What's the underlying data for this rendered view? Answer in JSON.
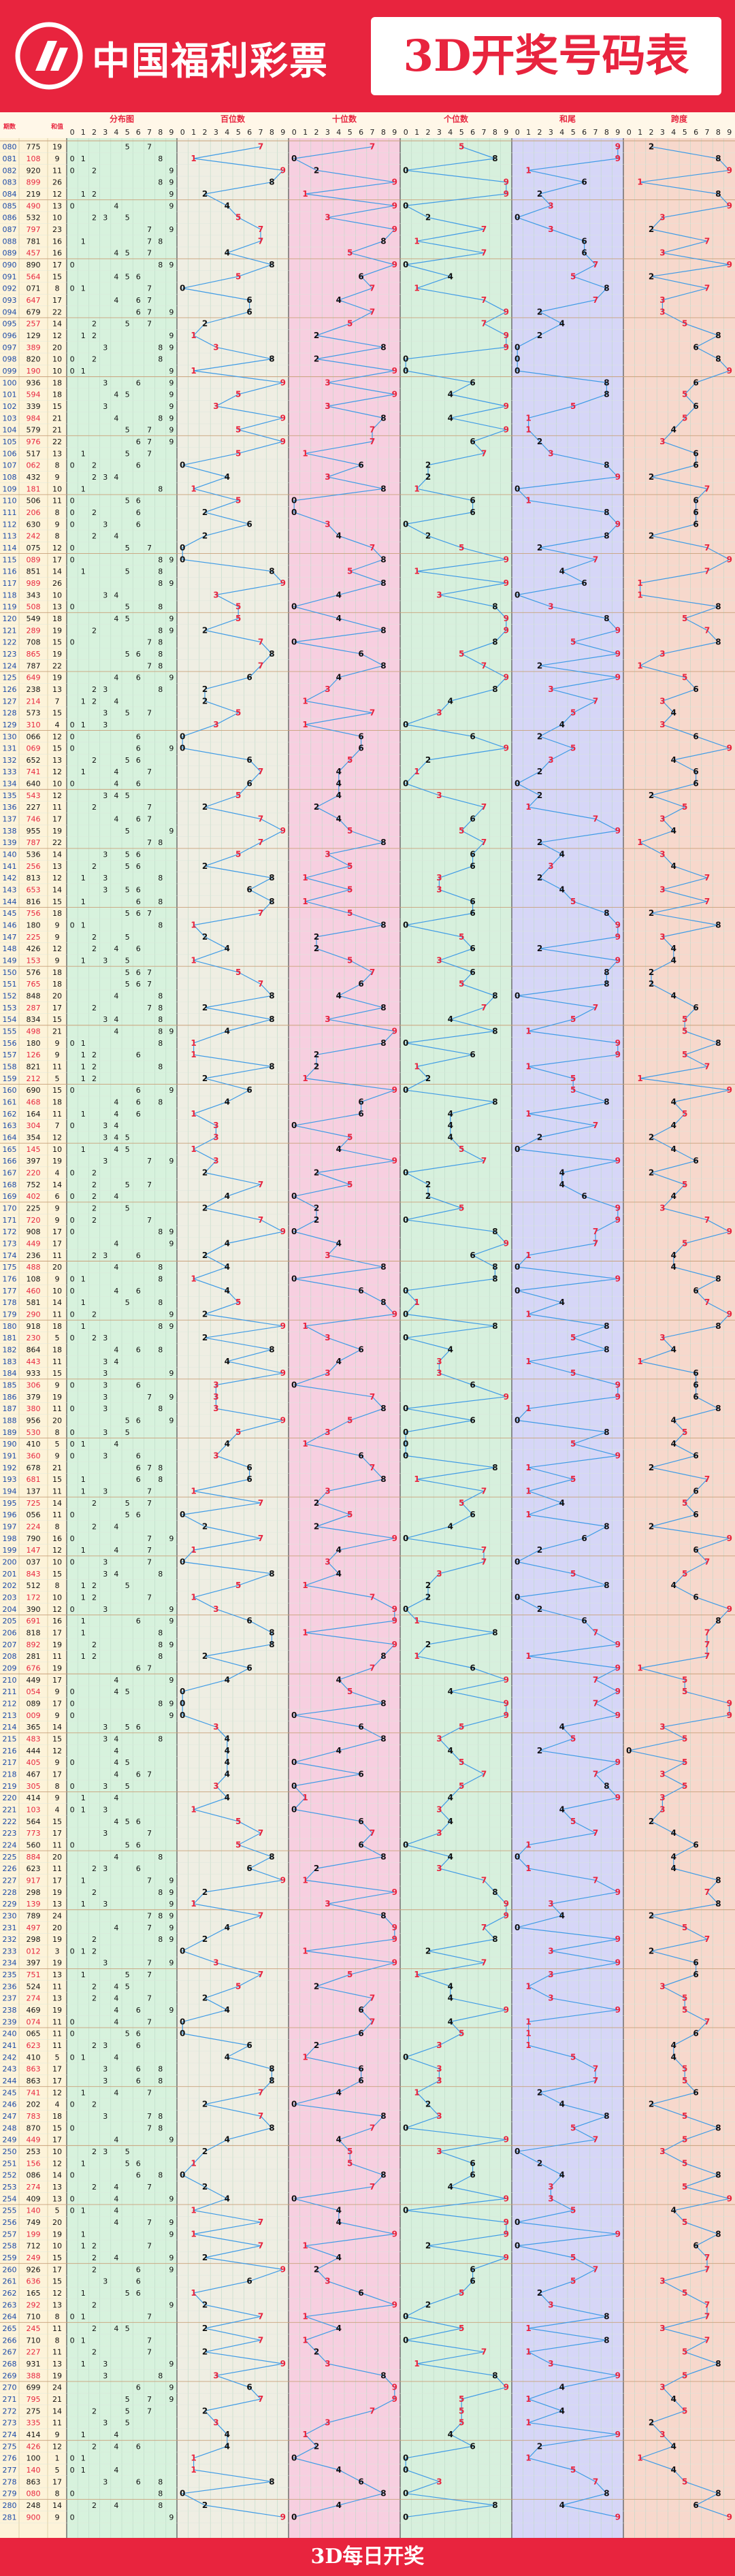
{
  "header": {
    "logo_text": "中国福利彩票",
    "title": "3D开奖号码表"
  },
  "footer": {
    "caption": "3D每日开奖"
  },
  "colors": {
    "brand_red": "#e8243e",
    "zone_distribution": "#d7f2dd",
    "zone_hundreds": "#efeee3",
    "zone_tens": "#f7cfe0",
    "zone_units": "#d7f0dd",
    "zone_sum_tail": "#d6d6f7",
    "zone_span": "#f7d8cc",
    "trend_line": "#3f9be6",
    "odd_number": "#e8243e",
    "number": "#111111"
  },
  "icons": {
    "logo": "welfare-lottery-logo-icon",
    "watermark": "watermark-logo-icon"
  },
  "chart_data": {
    "type": "table",
    "columns": {
      "period": "期数",
      "draw_number": "开奖号",
      "sum": "和值",
      "distribution": "分布图",
      "hundreds": "百位数",
      "tens": "十位数",
      "units": "个位数",
      "sum_tail": "和尾",
      "span": "跨度"
    },
    "digit_headers": [
      "0",
      "1",
      "2",
      "3",
      "4",
      "5",
      "6",
      "7",
      "8",
      "9"
    ],
    "rows": [
      {
        "period": "080",
        "draw": "775",
        "sum": "19"
      },
      {
        "period": "081",
        "draw": "108",
        "sum": "9"
      },
      {
        "period": "082",
        "draw": "920",
        "sum": "11"
      },
      {
        "period": "083",
        "draw": "899",
        "sum": "26"
      },
      {
        "period": "084",
        "draw": "219",
        "sum": "12"
      },
      {
        "period": "085",
        "draw": "490",
        "sum": "13"
      },
      {
        "period": "086",
        "draw": "532",
        "sum": "10"
      },
      {
        "period": "087",
        "draw": "797",
        "sum": "23"
      },
      {
        "period": "088",
        "draw": "781",
        "sum": "16"
      },
      {
        "period": "089",
        "draw": "457",
        "sum": "16"
      },
      {
        "period": "090",
        "draw": "890",
        "sum": "17"
      },
      {
        "period": "091",
        "draw": "564",
        "sum": "15"
      },
      {
        "period": "092",
        "draw": "071",
        "sum": "8"
      },
      {
        "period": "093",
        "draw": "647",
        "sum": "17"
      },
      {
        "period": "094",
        "draw": "679",
        "sum": "22"
      },
      {
        "period": "095",
        "draw": "257",
        "sum": "14"
      },
      {
        "period": "096",
        "draw": "129",
        "sum": "12"
      },
      {
        "period": "097",
        "draw": "389",
        "sum": "20"
      },
      {
        "period": "098",
        "draw": "820",
        "sum": "10"
      },
      {
        "period": "099",
        "draw": "190",
        "sum": "10"
      },
      {
        "period": "100",
        "draw": "936",
        "sum": "18"
      },
      {
        "period": "101",
        "draw": "594",
        "sum": "18"
      },
      {
        "period": "102",
        "draw": "339",
        "sum": "15"
      },
      {
        "period": "103",
        "draw": "984",
        "sum": "21"
      },
      {
        "period": "104",
        "draw": "579",
        "sum": "21"
      },
      {
        "period": "105",
        "draw": "976",
        "sum": "22"
      },
      {
        "period": "106",
        "draw": "517",
        "sum": "13"
      },
      {
        "period": "107",
        "draw": "062",
        "sum": "8"
      },
      {
        "period": "108",
        "draw": "432",
        "sum": "9"
      },
      {
        "period": "109",
        "draw": "181",
        "sum": "10"
      },
      {
        "period": "110",
        "draw": "506",
        "sum": "11"
      },
      {
        "period": "111",
        "draw": "206",
        "sum": "8"
      },
      {
        "period": "112",
        "draw": "630",
        "sum": "9"
      },
      {
        "period": "113",
        "draw": "242",
        "sum": "8"
      },
      {
        "period": "114",
        "draw": "075",
        "sum": "12"
      },
      {
        "period": "115",
        "draw": "089",
        "sum": "17"
      },
      {
        "period": "116",
        "draw": "851",
        "sum": "14"
      },
      {
        "period": "117",
        "draw": "989",
        "sum": "26"
      },
      {
        "period": "118",
        "draw": "343",
        "sum": "10"
      },
      {
        "period": "119",
        "draw": "508",
        "sum": "13"
      },
      {
        "period": "120",
        "draw": "549",
        "sum": "18"
      },
      {
        "period": "121",
        "draw": "289",
        "sum": "19"
      },
      {
        "period": "122",
        "draw": "708",
        "sum": "15"
      },
      {
        "period": "123",
        "draw": "865",
        "sum": "19"
      },
      {
        "period": "124",
        "draw": "787",
        "sum": "22"
      },
      {
        "period": "125",
        "draw": "649",
        "sum": "19"
      },
      {
        "period": "126",
        "draw": "238",
        "sum": "13"
      },
      {
        "period": "127",
        "draw": "214",
        "sum": "7"
      },
      {
        "period": "128",
        "draw": "573",
        "sum": "15"
      },
      {
        "period": "129",
        "draw": "310",
        "sum": "4"
      },
      {
        "period": "130",
        "draw": "066",
        "sum": "12"
      },
      {
        "period": "131",
        "draw": "069",
        "sum": "15"
      },
      {
        "period": "132",
        "draw": "652",
        "sum": "13"
      },
      {
        "period": "133",
        "draw": "741",
        "sul": "",
        "sum": "12"
      },
      {
        "period": "134",
        "draw": "640",
        "sum": "10"
      },
      {
        "period": "135",
        "draw": "543",
        "sum": "12"
      },
      {
        "period": "136",
        "draw": "227",
        "sum": "11"
      },
      {
        "period": "137",
        "draw": "746",
        "sum": "17"
      },
      {
        "period": "138",
        "draw": "955",
        "sum": "19"
      },
      {
        "period": "139",
        "draw": "787",
        "sum": "22"
      },
      {
        "period": "140",
        "draw": "536",
        "sum": "14"
      },
      {
        "period": "141",
        "draw": "256",
        "sum": "13"
      },
      {
        "period": "142",
        "draw": "813",
        "sum": "12"
      },
      {
        "period": "143",
        "draw": "653",
        "sum": "14"
      },
      {
        "period": "144",
        "draw": "816",
        "sum": "15"
      },
      {
        "period": "145",
        "draw": "756",
        "sum": "18"
      },
      {
        "period": "146",
        "draw": "180",
        "sum": "9"
      },
      {
        "period": "147",
        "draw": "225",
        "sum": "9"
      },
      {
        "period": "148",
        "draw": "426",
        "sum": "12"
      },
      {
        "period": "149",
        "draw": "153",
        "sum": "9"
      },
      {
        "period": "150",
        "draw": "576",
        "sum": "18"
      },
      {
        "period": "151",
        "draw": "765",
        "sum": "18"
      },
      {
        "period": "152",
        "draw": "848",
        "sum": "20"
      },
      {
        "period": "153",
        "draw": "287",
        "sum": "17"
      },
      {
        "period": "154",
        "draw": "834",
        "sum": "15"
      },
      {
        "period": "155",
        "draw": "498",
        "sum": "21"
      },
      {
        "period": "156",
        "draw": "180",
        "sum": "9"
      },
      {
        "period": "157",
        "draw": "126",
        "sum": "9"
      },
      {
        "period": "158",
        "draw": "821",
        "sum": "11"
      },
      {
        "period": "159",
        "draw": "212",
        "sum": "5"
      },
      {
        "period": "160",
        "draw": "690",
        "sum": "15"
      },
      {
        "period": "161",
        "draw": "468",
        "sum": "18"
      },
      {
        "period": "162",
        "draw": "164",
        "sum": "11"
      },
      {
        "period": "163",
        "draw": "304",
        "sum": "7"
      },
      {
        "period": "164",
        "draw": "354",
        "sum": "12"
      },
      {
        "period": "165",
        "draw": "145",
        "sum": "10"
      },
      {
        "period": "166",
        "draw": "397",
        "sum": "19"
      },
      {
        "period": "167",
        "draw": "220",
        "sum": "4"
      },
      {
        "period": "168",
        "draw": "752",
        "sum": "14"
      },
      {
        "period": "169",
        "draw": "402",
        "sum": "6"
      },
      {
        "period": "170",
        "draw": "225",
        "sum": "9"
      },
      {
        "period": "171",
        "draw": "720",
        "sum": "9"
      },
      {
        "period": "172",
        "draw": "908",
        "sum": "17"
      },
      {
        "period": "173",
        "draw": "449",
        "sum": "17"
      },
      {
        "period": "174",
        "draw": "236",
        "sum": "11"
      },
      {
        "period": "175",
        "draw": "488",
        "sum": "20"
      },
      {
        "period": "176",
        "draw": "108",
        "sum": "9"
      },
      {
        "period": "177",
        "draw": "460",
        "sum": "10"
      },
      {
        "period": "178",
        "draw": "581",
        "sum": "14"
      },
      {
        "period": "179",
        "draw": "290",
        "sum": "11"
      },
      {
        "period": "180",
        "draw": "918",
        "sum": "18"
      },
      {
        "period": "181",
        "draw": "230",
        "sum": "5"
      },
      {
        "period": "182",
        "draw": "864",
        "sum": "18"
      },
      {
        "period": "183",
        "draw": "443",
        "sum": "11"
      },
      {
        "period": "184",
        "draw": "933",
        "sum": "15"
      },
      {
        "period": "185",
        "draw": "306",
        "sum": "9"
      },
      {
        "period": "186",
        "draw": "379",
        "sum": "19"
      },
      {
        "period": "187",
        "draw": "380",
        "sum": "11"
      },
      {
        "period": "188",
        "draw": "956",
        "sum": "20"
      },
      {
        "period": "189",
        "draw": "530",
        "sum": "8"
      },
      {
        "period": "190",
        "draw": "410",
        "sum": "5"
      },
      {
        "period": "191",
        "draw": "360",
        "sum": "9"
      },
      {
        "period": "192",
        "draw": "678",
        "sum": "21"
      },
      {
        "period": "193",
        "draw": "681",
        "sum": "15"
      },
      {
        "period": "194",
        "draw": "137",
        "sum": "11"
      },
      {
        "period": "195",
        "draw": "725",
        "sum": "14"
      },
      {
        "period": "196",
        "draw": "056",
        "sum": "11"
      },
      {
        "period": "197",
        "draw": "224",
        "sum": "8"
      },
      {
        "period": "198",
        "draw": "790",
        "sum": "16"
      },
      {
        "period": "199",
        "draw": "147",
        "sum": "12"
      },
      {
        "period": "200",
        "draw": "037",
        "sum": "10"
      },
      {
        "period": "201",
        "draw": "843",
        "sum": "15"
      },
      {
        "period": "202",
        "draw": "512",
        "sum": "8"
      },
      {
        "period": "203",
        "draw": "172",
        "sum": "10"
      },
      {
        "period": "204",
        "draw": "390",
        "sum": "12"
      },
      {
        "period": "205",
        "draw": "691",
        "sum": "16"
      },
      {
        "period": "206",
        "draw": "818",
        "sum": "17"
      },
      {
        "period": "207",
        "draw": "892",
        "sum": "19"
      },
      {
        "period": "208",
        "draw": "281",
        "sum": "11"
      },
      {
        "period": "209",
        "draw": "676",
        "sum": "19"
      },
      {
        "period": "210",
        "draw": "449",
        "sum": "17"
      },
      {
        "period": "211",
        "draw": "054",
        "sum": "9"
      },
      {
        "period": "212",
        "draw": "089",
        "sum": "17"
      },
      {
        "period": "213",
        "draw": "009",
        "sum": "9"
      },
      {
        "period": "214",
        "draw": "365",
        "sum": "14"
      },
      {
        "period": "215",
        "draw": "483",
        "sum": "15"
      },
      {
        "period": "216",
        "draw": "444",
        "sum": "12"
      },
      {
        "period": "217",
        "draw": "405",
        "sum": "9"
      },
      {
        "period": "218",
        "draw": "467",
        "sum": "17"
      },
      {
        "period": "219",
        "draw": "305",
        "sum": "8"
      },
      {
        "period": "220",
        "draw": "414",
        "sum": "9"
      },
      {
        "period": "221",
        "draw": "103",
        "sum": "4"
      },
      {
        "period": "222",
        "draw": "564",
        "sum": "15"
      },
      {
        "period": "223",
        "draw": "773",
        "sum": "17"
      },
      {
        "period": "224",
        "draw": "560",
        "sum": "11"
      },
      {
        "period": "225",
        "draw": "884",
        "sum": "20"
      },
      {
        "period": "226",
        "draw": "623",
        "sum": "11"
      },
      {
        "period": "227",
        "draw": "917",
        "sum": "17"
      },
      {
        "period": "228",
        "draw": "298",
        "sum": "19"
      },
      {
        "period": "229",
        "draw": "139",
        "sum": "13"
      },
      {
        "period": "230",
        "draw": "789",
        "sum": "24"
      },
      {
        "period": "231",
        "draw": "497",
        "sum": "20"
      },
      {
        "period": "232",
        "draw": "298",
        "sum": "19"
      },
      {
        "period": "233",
        "draw": "012",
        "sum": "3"
      },
      {
        "period": "234",
        "draw": "397",
        "sum": "19"
      },
      {
        "period": "235",
        "draw": "751",
        "sum": "13"
      },
      {
        "period": "236",
        "draw": "524",
        "sum": "11"
      },
      {
        "period": "237",
        "draw": "274",
        "sum": "13"
      },
      {
        "period": "238",
        "draw": "469",
        "sum": "19"
      },
      {
        "period": "239",
        "draw": "074",
        "sum": "11"
      },
      {
        "period": "240",
        "draw": "065",
        "sum": "11"
      },
      {
        "period": "241",
        "draw": "623",
        "sum": "11"
      },
      {
        "period": "242",
        "draw": "410",
        "sum": "5"
      },
      {
        "period": "243",
        "draw": "863",
        "sum": "17"
      },
      {
        "period": "244",
        "draw": "863",
        "sum": "17"
      },
      {
        "period": "245",
        "draw": "741",
        "sum": "12"
      },
      {
        "period": "246",
        "draw": "202",
        "sum": "4"
      },
      {
        "period": "247",
        "draw": "783",
        "sum": "18"
      },
      {
        "period": "248",
        "draw": "870",
        "sum": "15"
      },
      {
        "period": "249",
        "draw": "449",
        "sum": "17"
      },
      {
        "period": "250",
        "draw": "253",
        "sum": "10"
      },
      {
        "period": "251",
        "draw": "156",
        "sum": "12"
      },
      {
        "period": "252",
        "draw": "086",
        "sum": "14"
      },
      {
        "period": "253",
        "draw": "274",
        "sum": "13"
      },
      {
        "period": "254",
        "draw": "409",
        "sum": "13"
      },
      {
        "period": "255",
        "draw": "140",
        "sum": "5"
      },
      {
        "period": "256",
        "draw": "749",
        "sum": "20"
      },
      {
        "period": "257",
        "draw": "199",
        "sum": "19"
      },
      {
        "period": "258",
        "draw": "712",
        "sum": "10"
      },
      {
        "period": "259",
        "draw": "249",
        "sum": "15"
      },
      {
        "period": "260",
        "draw": "926",
        "sum": "17"
      },
      {
        "period": "261",
        "draw": "636",
        "sum": "15"
      },
      {
        "period": "262",
        "draw": "165",
        "sum": "12"
      },
      {
        "period": "263",
        "draw": "292",
        "sum": "13"
      },
      {
        "period": "264",
        "draw": "710",
        "sum": "8"
      },
      {
        "period": "265",
        "draw": "245",
        "sum": "11"
      },
      {
        "period": "266",
        "draw": "710",
        "sum": "8"
      },
      {
        "period": "267",
        "draw": "227",
        "sum": "11"
      },
      {
        "period": "268",
        "draw": "931",
        "sum": "13"
      },
      {
        "period": "269",
        "draw": "388",
        "sum": "19"
      },
      {
        "period": "270",
        "draw": "699",
        "sum": "24"
      },
      {
        "period": "271",
        "draw": "795",
        "sum": "21"
      },
      {
        "period": "272",
        "draw": "275",
        "sum": "14"
      },
      {
        "period": "273",
        "draw": "335",
        "sum": "11"
      },
      {
        "period": "274",
        "draw": "414",
        "sum": "9"
      },
      {
        "period": "275",
        "draw": "426",
        "sum": "12"
      },
      {
        "period": "276",
        "draw": "100",
        "sum": "1"
      },
      {
        "period": "277",
        "draw": "140",
        "sum": "5"
      },
      {
        "period": "278",
        "draw": "863",
        "sum": "17"
      },
      {
        "period": "279",
        "draw": "080",
        "sum": "8"
      },
      {
        "period": "280",
        "draw": "248",
        "sum": "14"
      },
      {
        "period": "281",
        "draw": "900",
        "sum": "9"
      }
    ]
  }
}
